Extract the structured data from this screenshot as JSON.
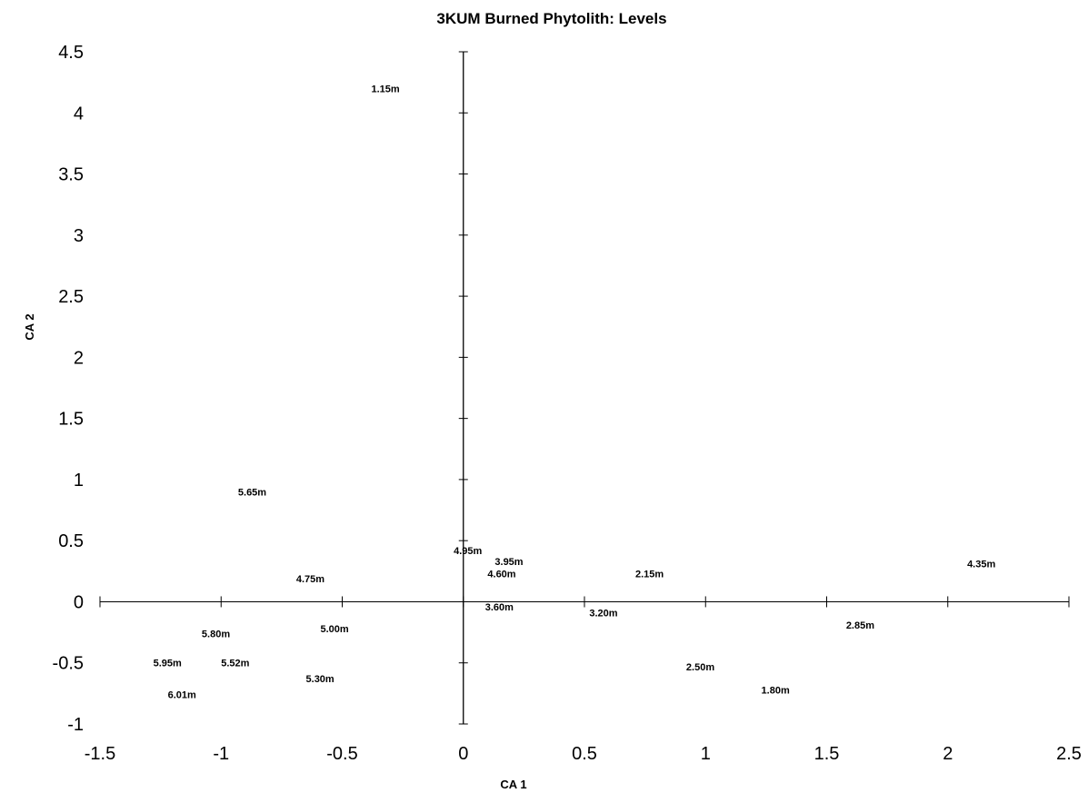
{
  "chart_data": {
    "type": "scatter",
    "title": "3KUM Burned Phytolith: Levels",
    "xlabel": "CA 1",
    "ylabel": "CA 2",
    "xlim": [
      -1.5,
      2.5
    ],
    "ylim": [
      -1,
      4.5
    ],
    "x_ticks": [
      "-1.5",
      "-1",
      "-0.5",
      "0",
      "0.5",
      "1",
      "1.5",
      "2",
      "2.5"
    ],
    "y_ticks": [
      "4.5",
      "4",
      "3.5",
      "3",
      "2.5",
      "2",
      "1.5",
      "1",
      "0.5",
      "0",
      "-0.5",
      "-1"
    ],
    "grid": false,
    "points": [
      {
        "label": "1.15m",
        "x": -0.38,
        "y": 4.2
      },
      {
        "label": "5.65m",
        "x": -0.93,
        "y": 0.9
      },
      {
        "label": "4.95m",
        "x": -0.04,
        "y": 0.42
      },
      {
        "label": "3.95m",
        "x": 0.13,
        "y": 0.33
      },
      {
        "label": "4.60m",
        "x": 0.1,
        "y": 0.23
      },
      {
        "label": "4.35m",
        "x": 2.08,
        "y": 0.31
      },
      {
        "label": "2.15m",
        "x": 0.71,
        "y": 0.23
      },
      {
        "label": "4.75m",
        "x": -0.69,
        "y": 0.19
      },
      {
        "label": "3.60m",
        "x": 0.09,
        "y": -0.04
      },
      {
        "label": "3.20m",
        "x": 0.52,
        "y": -0.09
      },
      {
        "label": "5.00m",
        "x": -0.59,
        "y": -0.22
      },
      {
        "label": "5.80m",
        "x": -1.08,
        "y": -0.26
      },
      {
        "label": "2.85m",
        "x": 1.58,
        "y": -0.19
      },
      {
        "label": "5.95m",
        "x": -1.28,
        "y": -0.5
      },
      {
        "label": "5.52m",
        "x": -1.0,
        "y": -0.5
      },
      {
        "label": "2.50m",
        "x": 0.92,
        "y": -0.53
      },
      {
        "label": "5.30m",
        "x": -0.65,
        "y": -0.63
      },
      {
        "label": "1.80m",
        "x": 1.23,
        "y": -0.72
      },
      {
        "label": "6.01m",
        "x": -1.22,
        "y": -0.76
      }
    ]
  }
}
